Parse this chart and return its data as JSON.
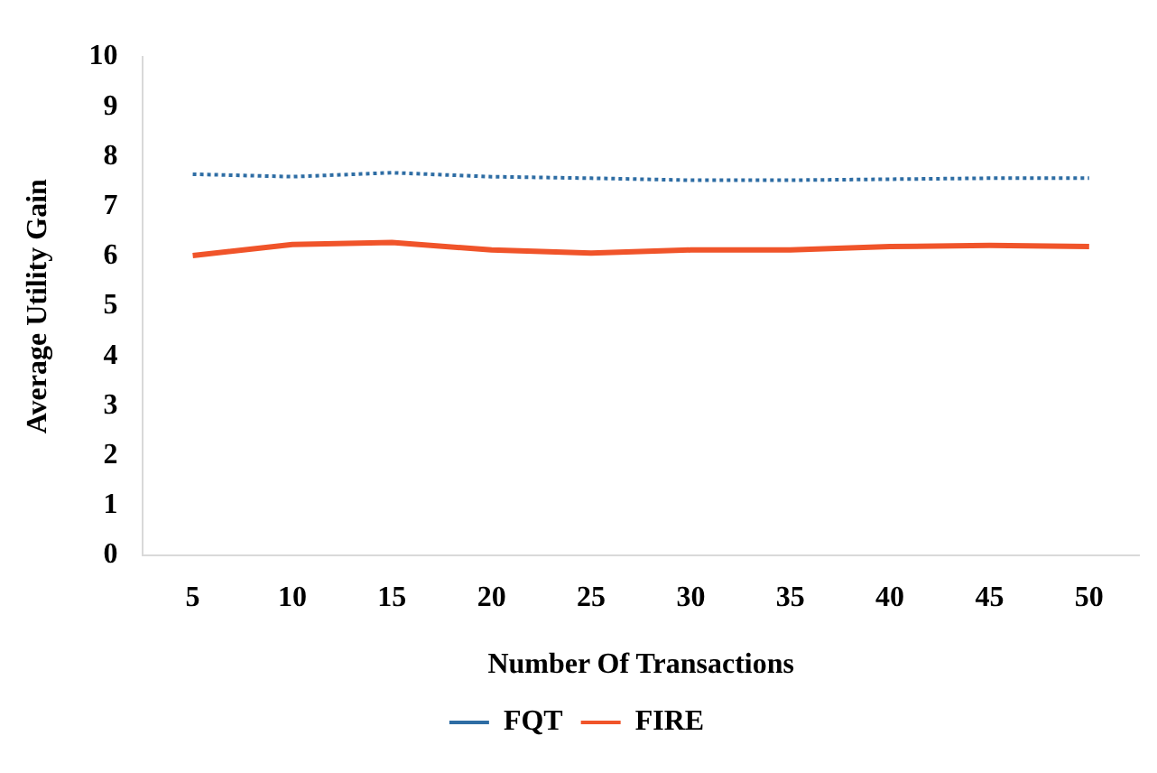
{
  "chart_data": {
    "type": "line",
    "xlabel": "Number Of Transactions",
    "ylabel": "Average Utility Gain",
    "categories": [
      "5",
      "10",
      "15",
      "20",
      "25",
      "30",
      "35",
      "40",
      "45",
      "50"
    ],
    "series": [
      {
        "name": "FQT",
        "color": "#2e6da4",
        "line_style": "dotted",
        "values": [
          7.65,
          7.6,
          7.68,
          7.6,
          7.57,
          7.53,
          7.53,
          7.55,
          7.57,
          7.57
        ]
      },
      {
        "name": "FIRE",
        "color": "#f0542a",
        "line_style": "solid",
        "values": [
          6.02,
          6.24,
          6.28,
          6.13,
          6.07,
          6.13,
          6.13,
          6.2,
          6.22,
          6.2
        ]
      }
    ],
    "ylim": [
      0,
      10
    ],
    "yticks": [
      0,
      1,
      2,
      3,
      4,
      5,
      6,
      7,
      8,
      9,
      10
    ],
    "grid": false,
    "legend": "bottom",
    "marker": "none"
  }
}
